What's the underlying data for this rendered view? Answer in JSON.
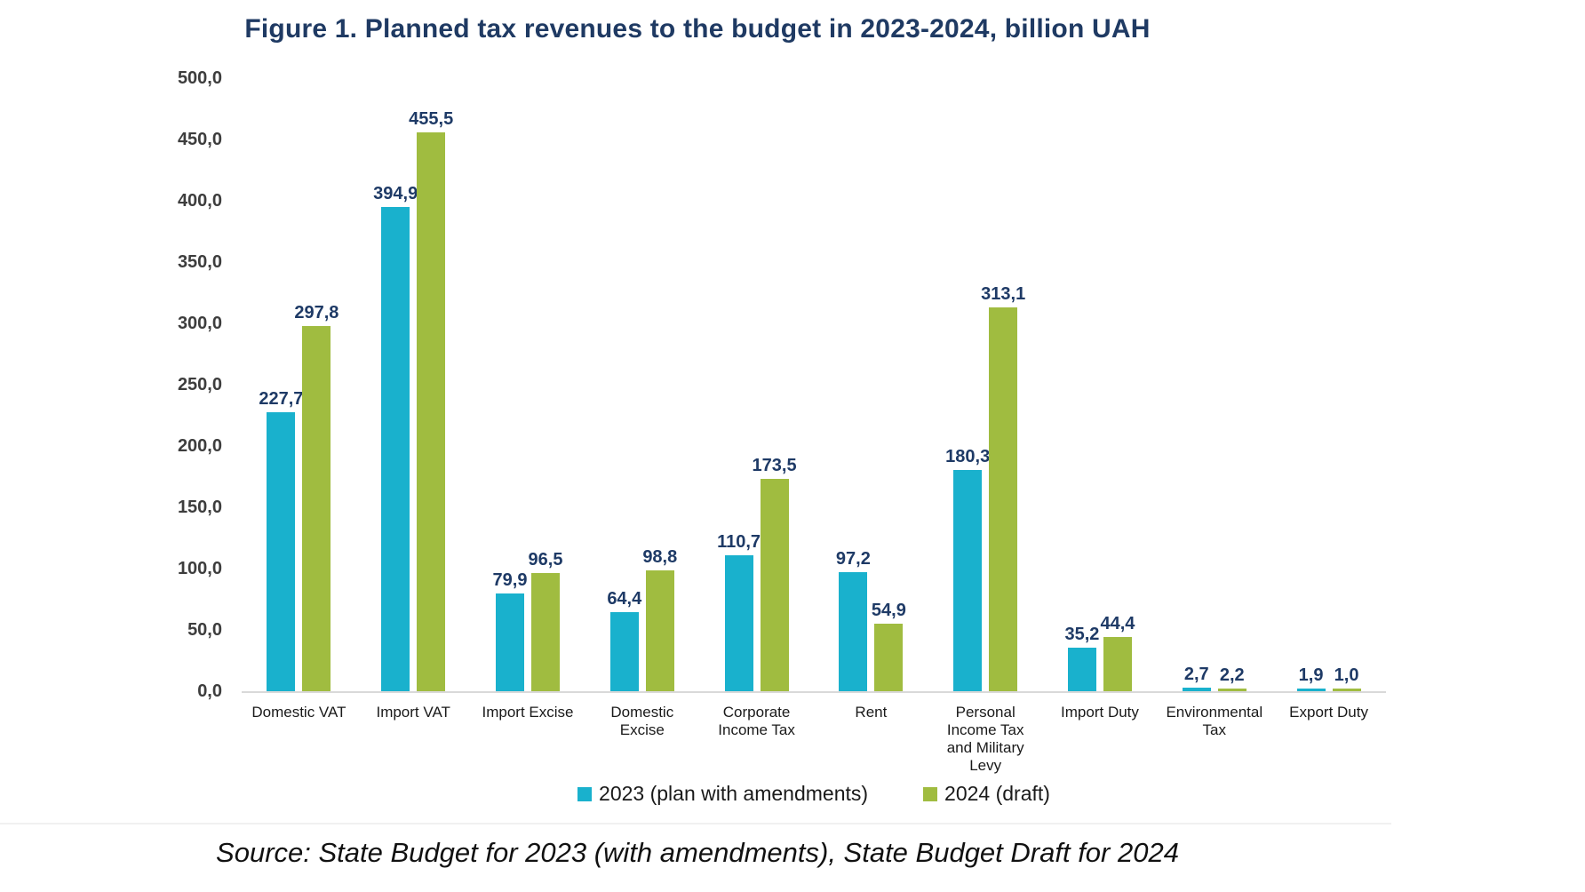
{
  "figure": {
    "source_note": "Source: State Budget for 2023 (with amendments), State Budget Draft for 2024"
  },
  "chart_data": {
    "type": "bar",
    "title": "Figure 1. Planned tax revenues to the budget in 2023-2024, billion UAH",
    "categories": [
      "Domestic VAT",
      "Import VAT",
      "Import Excise",
      "Domestic Excise",
      "Corporate Income Tax",
      "Rent",
      "Personal Income Tax and Military Levy",
      "Import Duty",
      "Environmental Tax",
      "Export Duty"
    ],
    "category_line_breaks": [
      [
        "Domestic VAT"
      ],
      [
        "Import VAT"
      ],
      [
        "Import Excise"
      ],
      [
        "Domestic",
        "Excise"
      ],
      [
        "Corporate",
        "Income Tax"
      ],
      [
        "Rent"
      ],
      [
        "Personal",
        "Income Tax",
        "and Military",
        "Levy"
      ],
      [
        "Import Duty"
      ],
      [
        "Environmental",
        "Tax"
      ],
      [
        "Export Duty"
      ]
    ],
    "series": [
      {
        "name": "2023 (plan with amendments)",
        "color": "#19b1cd",
        "values": [
          227.7,
          394.9,
          79.9,
          64.4,
          110.7,
          97.2,
          180.3,
          35.2,
          2.7,
          1.9
        ],
        "value_labels": [
          "227,7",
          "394,9",
          "79,9",
          "64,4",
          "110,7",
          "97,2",
          "180,3",
          "35,2",
          "2,7",
          "1,9"
        ]
      },
      {
        "name": "2024 (draft)",
        "color": "#a0bc40",
        "values": [
          297.8,
          455.5,
          96.5,
          98.8,
          173.5,
          54.9,
          313.1,
          44.4,
          2.2,
          1.0
        ],
        "value_labels": [
          "297,8",
          "455,5",
          "96,5",
          "98,8",
          "173,5",
          "54,9",
          "313,1",
          "44,4",
          "2,2",
          "1,0"
        ]
      }
    ],
    "ylim": [
      0,
      500
    ],
    "yticks": [
      {
        "value": 0,
        "label": "0,0"
      },
      {
        "value": 50,
        "label": "50,0"
      },
      {
        "value": 100,
        "label": "100,0"
      },
      {
        "value": 150,
        "label": "150,0"
      },
      {
        "value": 200,
        "label": "200,0"
      },
      {
        "value": 250,
        "label": "250,0"
      },
      {
        "value": 300,
        "label": "300,0"
      },
      {
        "value": 350,
        "label": "350,0"
      },
      {
        "value": 400,
        "label": "400,0"
      },
      {
        "value": 450,
        "label": "450,0"
      },
      {
        "value": 500,
        "label": "500,0"
      }
    ],
    "grid": false,
    "legend_position": "bottom",
    "value_label_color": "#1e3a66",
    "title_color": "#1f3a63",
    "axis_line_color": "#d9d9d9"
  }
}
